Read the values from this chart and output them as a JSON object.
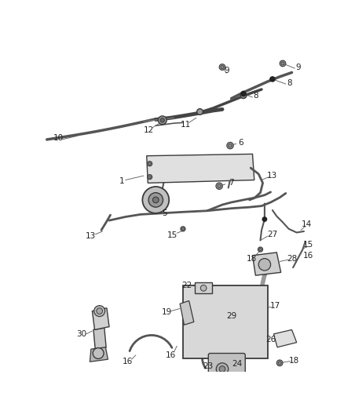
{
  "bg_color": "#ffffff",
  "line_color": "#3a3a3a",
  "label_color": "#222222",
  "figsize": [
    4.38,
    5.33
  ],
  "dpi": 100,
  "component_color": "#cccccc",
  "component_dark": "#aaaaaa",
  "component_light": "#e8e8e8"
}
